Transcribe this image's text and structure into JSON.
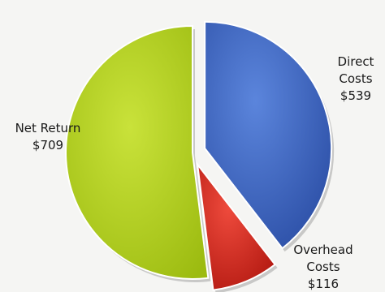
{
  "chart_data": {
    "type": "pie",
    "title": "",
    "slices": [
      {
        "name": "Direct Costs",
        "value": 539,
        "label_lines": [
          "Direct",
          "Costs",
          "$539"
        ],
        "color": "#3f67c2",
        "exploded": true
      },
      {
        "name": "Overhead Costs",
        "value": 116,
        "label_lines": [
          "Overhead",
          "Costs",
          "$116"
        ],
        "color": "#d52b21",
        "exploded": true
      },
      {
        "name": "Net Return",
        "value": 709,
        "label_lines": [
          "Net Return",
          "$709"
        ],
        "color": "#b4d21e",
        "exploded": false
      }
    ],
    "legend": "none"
  }
}
